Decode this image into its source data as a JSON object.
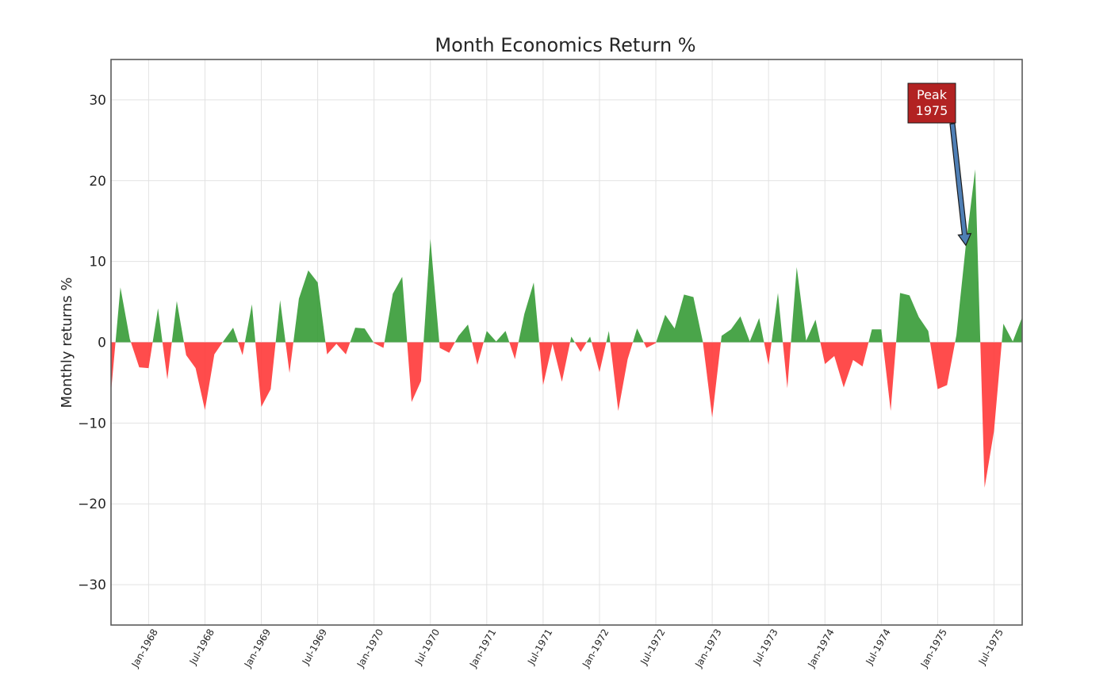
{
  "chart_data": {
    "type": "area",
    "title": "Month Economics Return %",
    "xlabel": "",
    "ylabel": "Monthly returns %",
    "ylim": [
      -35,
      35
    ],
    "yticks": [
      30,
      20,
      10,
      0,
      -10,
      -20,
      -30
    ],
    "ytick_labels": [
      "30",
      "20",
      "10",
      "0",
      "−10",
      "−20",
      "−30"
    ],
    "xlim": [
      "1967-09",
      "1975-10"
    ],
    "xticks": [
      "1968-01",
      "1968-07",
      "1969-01",
      "1969-07",
      "1970-01",
      "1970-07",
      "1971-01",
      "1971-07",
      "1972-01",
      "1972-07",
      "1973-01",
      "1973-07",
      "1974-01",
      "1974-07",
      "1975-01",
      "1975-07"
    ],
    "xtick_labels": [
      "Jan-1968",
      "Jul-1968",
      "Jan-1969",
      "Jul-1969",
      "Jan-1970",
      "Jul-1970",
      "Jan-1971",
      "Jul-1971",
      "Jan-1972",
      "Jul-1972",
      "Jan-1973",
      "Jul-1973",
      "Jan-1974",
      "Jul-1974",
      "Jan-1975",
      "Jul-1975"
    ],
    "grid": true,
    "positive_color": "#2a952a",
    "negative_color": "#ff3333",
    "start": "1967-09",
    "months": [
      "1967-09",
      "1967-10",
      "1967-11",
      "1967-12",
      "1968-01",
      "1968-02",
      "1968-03",
      "1968-04",
      "1968-05",
      "1968-06",
      "1968-07",
      "1968-08",
      "1968-09",
      "1968-10",
      "1968-11",
      "1968-12",
      "1969-01",
      "1969-02",
      "1969-03",
      "1969-04",
      "1969-05",
      "1969-06",
      "1969-07",
      "1969-08",
      "1969-09",
      "1969-10",
      "1969-11",
      "1969-12",
      "1970-01",
      "1970-02",
      "1970-03",
      "1970-04",
      "1970-05",
      "1970-06",
      "1970-07",
      "1970-08",
      "1970-09",
      "1970-10",
      "1970-11",
      "1970-12",
      "1971-01",
      "1971-02",
      "1971-03",
      "1971-04",
      "1971-05",
      "1971-06",
      "1971-07",
      "1971-08",
      "1971-09",
      "1971-10",
      "1971-11",
      "1971-12",
      "1972-01",
      "1972-02",
      "1972-03",
      "1972-04",
      "1972-05",
      "1972-06",
      "1972-07",
      "1972-08",
      "1972-09",
      "1972-10",
      "1972-11",
      "1972-12",
      "1973-01",
      "1973-02",
      "1973-03",
      "1973-04",
      "1973-05",
      "1973-06",
      "1973-07",
      "1973-08",
      "1973-09",
      "1973-10",
      "1973-11",
      "1973-12",
      "1974-01",
      "1974-02",
      "1974-03",
      "1974-04",
      "1974-05",
      "1974-06",
      "1974-07",
      "1974-08",
      "1974-09",
      "1974-10",
      "1974-11",
      "1974-12",
      "1975-01",
      "1975-02",
      "1975-03",
      "1975-04",
      "1975-05",
      "1975-06",
      "1975-07",
      "1975-08",
      "1975-09",
      "1975-10"
    ],
    "values": [
      -6.2,
      6.8,
      0.4,
      -3.1,
      -3.2,
      4.2,
      -4.6,
      5.1,
      -1.6,
      -3.2,
      -8.4,
      -1.5,
      0.2,
      1.8,
      -1.6,
      4.7,
      -8.0,
      -5.8,
      5.2,
      -3.8,
      5.4,
      8.9,
      7.4,
      -1.5,
      -0.2,
      -1.5,
      1.8,
      1.7,
      -0.1,
      -0.7,
      6.0,
      8.1,
      -7.4,
      -4.8,
      12.8,
      -0.7,
      -1.3,
      0.8,
      2.2,
      -2.8,
      1.4,
      0.1,
      1.4,
      -2.1,
      3.5,
      7.4,
      -5.3,
      -0.2,
      -4.9,
      0.7,
      -1.2,
      0.7,
      -3.7,
      1.4,
      -8.5,
      -2.1,
      1.7,
      -0.7,
      -0.1,
      3.4,
      1.7,
      5.9,
      5.6,
      0.1,
      -9.3,
      0.8,
      1.6,
      3.2,
      0.1,
      3.0,
      -2.8,
      6.1,
      -5.7,
      9.3,
      0.2,
      2.8,
      -2.7,
      -1.7,
      -5.6,
      -2.2,
      -3.0,
      1.6,
      1.6,
      -8.5,
      6.1,
      5.8,
      3.1,
      1.4,
      -5.8,
      -5.3,
      0.9,
      12.0,
      21.4,
      -18.0,
      -11.0,
      2.3,
      0.1,
      3.1
    ]
  },
  "annotation": {
    "line1": "Peak",
    "line2": "1975",
    "month": "1975-04",
    "box_color": "#b22222",
    "arrow_color": "#4f7fb5"
  }
}
